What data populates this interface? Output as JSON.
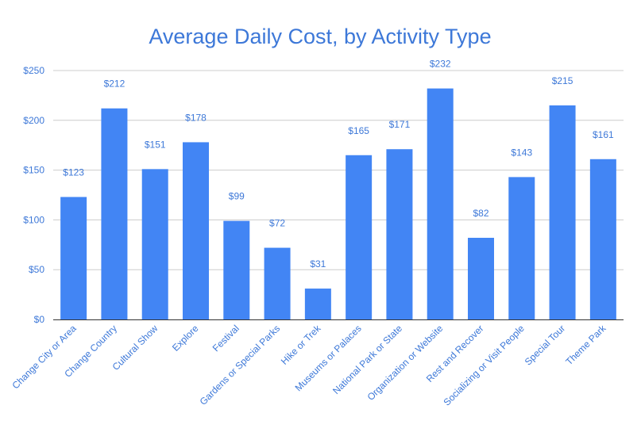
{
  "chart_data": {
    "type": "bar",
    "title": "Average Daily Cost, by Activity Type",
    "xlabel": "",
    "ylabel": "",
    "categories": [
      "Change City or Area",
      "Change Country",
      "Cultural Show",
      "Explore",
      "Festival",
      "Gardens or Special Parks",
      "Hike or Trek",
      "Museums or Palaces",
      "National Park or State",
      "Organization or Website",
      "Rest and Recover",
      "Socializing or Visit People",
      "Special Tour",
      "Theme Park"
    ],
    "values": [
      123,
      212,
      151,
      178,
      99,
      72,
      31,
      165,
      171,
      232,
      82,
      143,
      215,
      161
    ],
    "data_labels": [
      "$123",
      "$212",
      "$151",
      "$178",
      "$99",
      "$72",
      "$31",
      "$165",
      "$171",
      "$232",
      "$82",
      "$143",
      "$215",
      "$161"
    ],
    "ylim": [
      0,
      250
    ],
    "yticks": [
      0,
      50,
      100,
      150,
      200,
      250
    ],
    "ytick_labels": [
      "$0",
      "$50",
      "$100",
      "$150",
      "$200",
      "$250"
    ],
    "grid": true,
    "legend": "none",
    "bar_color": "#4285f4",
    "text_color": "#3d78d8"
  }
}
